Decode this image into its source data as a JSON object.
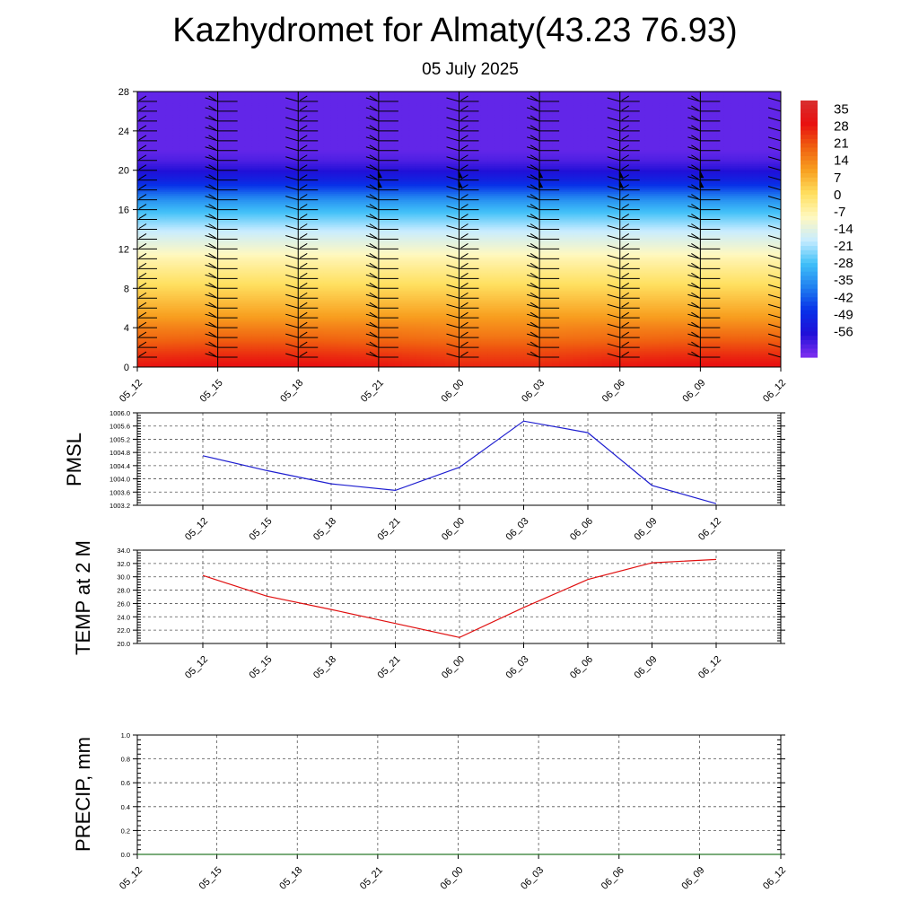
{
  "header": {
    "title": "Kazhydromet for Almaty(43.23 76.93)",
    "subtitle": "05 July 2025"
  },
  "colors": {
    "pmsl_line": "#1f1fd0",
    "temp_line": "#e01010",
    "precip_line": "#2a7a2a",
    "cross_section_stops": [
      "#d83030",
      "#e81010",
      "#f06010",
      "#f8a020",
      "#ffe060",
      "#fff8c0",
      "#c8ecff",
      "#40c0f8",
      "#2080f0",
      "#0830e8",
      "#2010d8",
      "#8030f0"
    ]
  },
  "chart_data": [
    {
      "id": "cross-section",
      "type": "heatmap",
      "title": "",
      "xlabel": "",
      "ylabel": "",
      "x": [
        "05_12",
        "05_15",
        "05_18",
        "05_21",
        "06_00",
        "06_03",
        "06_06",
        "06_09",
        "06_12"
      ],
      "yticks": [
        0,
        4,
        8,
        12,
        16,
        20,
        24,
        28
      ],
      "ylim": [
        0,
        28
      ],
      "levels": [
        0,
        1,
        2,
        3,
        4,
        5,
        6,
        7,
        8,
        9,
        10,
        11,
        12,
        13,
        14,
        15,
        16,
        17,
        18,
        19,
        20,
        21,
        22,
        23,
        24,
        25,
        26,
        27,
        28
      ],
      "values": [
        [
          32,
          33,
          33,
          32,
          30,
          30,
          32,
          33,
          33
        ],
        [
          29,
          30,
          30,
          29,
          27,
          27,
          29,
          30,
          30
        ],
        [
          25,
          26,
          26,
          25,
          24,
          24,
          25,
          26,
          26
        ],
        [
          21,
          22,
          22,
          21,
          20,
          20,
          21,
          22,
          22
        ],
        [
          18,
          18,
          18,
          18,
          17,
          17,
          18,
          18,
          18
        ],
        [
          14,
          14,
          14,
          14,
          14,
          14,
          14,
          14,
          14
        ],
        [
          11,
          11,
          11,
          11,
          11,
          11,
          11,
          11,
          11
        ],
        [
          8,
          8,
          8,
          8,
          8,
          8,
          8,
          8,
          8
        ],
        [
          5,
          5,
          5,
          5,
          5,
          5,
          5,
          5,
          5
        ],
        [
          2,
          2,
          2,
          2,
          2,
          2,
          2,
          2,
          2
        ],
        [
          -1,
          -1,
          -1,
          -1,
          -1,
          -1,
          -1,
          -1,
          -1
        ],
        [
          -4,
          -4,
          -4,
          -4,
          -4,
          -4,
          -4,
          -4,
          -4
        ],
        [
          -8,
          -8,
          -8,
          -8,
          -8,
          -8,
          -8,
          -8,
          -8
        ],
        [
          -12,
          -12,
          -12,
          -12,
          -12,
          -12,
          -12,
          -12,
          -12
        ],
        [
          -16,
          -16,
          -16,
          -16,
          -16,
          -16,
          -16,
          -16,
          -16
        ],
        [
          -21,
          -21,
          -21,
          -21,
          -21,
          -21,
          -21,
          -21,
          -21
        ],
        [
          -26,
          -26,
          -26,
          -26,
          -26,
          -26,
          -26,
          -26,
          -26
        ],
        [
          -32,
          -32,
          -32,
          -32,
          -32,
          -32,
          -32,
          -32,
          -32
        ],
        [
          -40,
          -40,
          -40,
          -40,
          -40,
          -40,
          -40,
          -40,
          -40
        ],
        [
          -48,
          -48,
          -48,
          -48,
          -48,
          -48,
          -48,
          -48,
          -48
        ],
        [
          -54,
          -54,
          -54,
          -54,
          -54,
          -54,
          -54,
          -54,
          -54
        ],
        [
          -58,
          -58,
          -58,
          -58,
          -58,
          -58,
          -58,
          -58,
          -58
        ],
        [
          -60,
          -60,
          -60,
          -60,
          -60,
          -60,
          -60,
          -60,
          -60
        ],
        [
          -60,
          -60,
          -60,
          -60,
          -60,
          -60,
          -60,
          -60,
          -60
        ],
        [
          -60,
          -60,
          -60,
          -60,
          -60,
          -60,
          -60,
          -60,
          -60
        ],
        [
          -60,
          -60,
          -60,
          -60,
          -60,
          -60,
          -60,
          -60,
          -60
        ],
        [
          -60,
          -60,
          -60,
          -60,
          -60,
          -60,
          -60,
          -60,
          -60
        ],
        [
          -60,
          -60,
          -60,
          -60,
          -60,
          -60,
          -60,
          -60,
          -60
        ],
        [
          -60,
          -60,
          -60,
          -60,
          -60,
          -60,
          -60,
          -60,
          -60
        ]
      ],
      "colorbar": {
        "labels": [
          "35",
          "28",
          "21",
          "14",
          "7",
          "0",
          "-7",
          "-14",
          "-21",
          "-28",
          "-35",
          "-42",
          "-49",
          "-56"
        ],
        "range": [
          -63,
          42
        ]
      },
      "wind_barbs": {
        "columns": [
          "05_12",
          "05_15",
          "05_18",
          "05_21",
          "06_00",
          "06_03",
          "06_06",
          "06_09",
          "06_12"
        ],
        "levels": [
          1,
          2,
          3,
          4,
          5,
          6,
          7,
          8,
          9,
          10,
          11,
          12,
          13,
          14,
          15,
          16,
          17,
          18,
          19,
          20,
          21,
          22,
          23,
          24,
          25,
          26,
          27
        ],
        "pennant_levels": [
          18.5,
          19.5
        ],
        "pennant_columns": [
          "05_21",
          "06_00",
          "06_03",
          "06_06",
          "06_09"
        ]
      }
    },
    {
      "id": "pmsl",
      "type": "line",
      "title": "",
      "xlabel": "",
      "ylabel": "PMSL",
      "x": [
        "05_12",
        "05_15",
        "05_18",
        "05_21",
        "06_00",
        "06_03",
        "06_06",
        "06_09",
        "06_12"
      ],
      "series": [
        {
          "values": [
            1004.7,
            1004.25,
            1003.85,
            1003.65,
            1004.35,
            1005.75,
            1005.4,
            1003.8,
            1003.25
          ]
        }
      ],
      "yticks": [
        "1003.2",
        "1003.6",
        "1004.0",
        "1004.4",
        "1004.8",
        "1005.2",
        "1005.6",
        "1006.0"
      ],
      "ylim": [
        1003.2,
        1006.0
      ],
      "grid": true
    },
    {
      "id": "temp2m",
      "type": "line",
      "title": "",
      "xlabel": "",
      "ylabel": "TEMP at 2 M",
      "x": [
        "05_12",
        "05_15",
        "05_18",
        "05_21",
        "06_00",
        "06_03",
        "06_06",
        "06_09",
        "06_12"
      ],
      "series": [
        {
          "values": [
            30.2,
            27.1,
            25.1,
            23.0,
            20.9,
            25.4,
            29.6,
            32.1,
            32.6
          ]
        }
      ],
      "yticks": [
        "20.0",
        "22.0",
        "24.0",
        "26.0",
        "28.0",
        "30.0",
        "32.0",
        "34.0"
      ],
      "ylim": [
        20.0,
        34.0
      ],
      "grid": true
    },
    {
      "id": "precip",
      "type": "line",
      "title": "",
      "xlabel": "",
      "ylabel": "PRECIP, mm",
      "x": [
        "05_12",
        "05_15",
        "05_18",
        "05_21",
        "06_00",
        "06_03",
        "06_06",
        "06_09",
        "06_12"
      ],
      "series": [
        {
          "values": [
            0,
            0,
            0,
            0,
            0,
            0,
            0,
            0,
            0
          ]
        }
      ],
      "yticks": [
        "0.0",
        "0.2",
        "0.4",
        "0.6",
        "0.8",
        "1.0"
      ],
      "ylim": [
        0.0,
        1.0
      ],
      "grid": true
    }
  ]
}
